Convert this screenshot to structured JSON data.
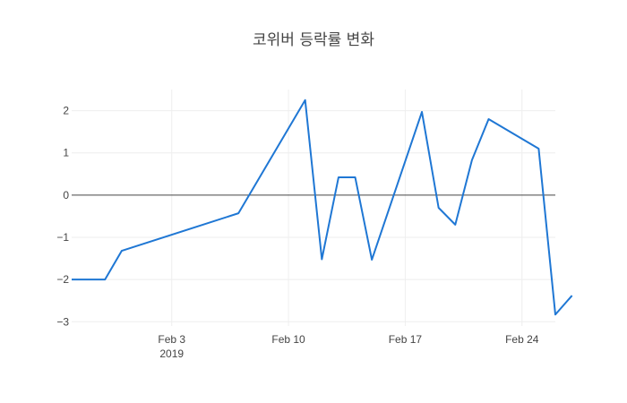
{
  "chart_data": {
    "type": "line",
    "title": "코위버 등락률 변화",
    "xlabel": "",
    "ylabel": "",
    "x_range": [
      "2019-01-28",
      "2019-02-26"
    ],
    "ylim": [
      -3.1,
      2.5
    ],
    "y_ticks": [
      2,
      1,
      0,
      -1,
      -2,
      -3
    ],
    "y_tick_labels": [
      "2",
      "1",
      "0",
      "−1",
      "−2",
      "−3"
    ],
    "x_ticks": [
      {
        "date": "2019-02-03",
        "label": "Feb 3",
        "sublabel": "2019"
      },
      {
        "date": "2019-02-10",
        "label": "Feb 10",
        "sublabel": ""
      },
      {
        "date": "2019-02-17",
        "label": "Feb 17",
        "sublabel": ""
      },
      {
        "date": "2019-02-24",
        "label": "Feb 24",
        "sublabel": ""
      }
    ],
    "grid": true,
    "zero_line": true,
    "series": [
      {
        "color": "#1f77d4",
        "points": [
          {
            "x": "2019-01-28",
            "y": -2.0
          },
          {
            "x": "2019-01-30",
            "y": -2.0
          },
          {
            "x": "2019-01-31",
            "y": -1.32
          },
          {
            "x": "2019-02-07",
            "y": -0.43
          },
          {
            "x": "2019-02-11",
            "y": 2.25
          },
          {
            "x": "2019-02-12",
            "y": -1.52
          },
          {
            "x": "2019-02-13",
            "y": 0.42
          },
          {
            "x": "2019-02-14",
            "y": 0.42
          },
          {
            "x": "2019-02-15",
            "y": -1.53
          },
          {
            "x": "2019-02-18",
            "y": 1.97
          },
          {
            "x": "2019-02-19",
            "y": -0.3
          },
          {
            "x": "2019-02-20",
            "y": -0.7
          },
          {
            "x": "2019-02-21",
            "y": 0.83
          },
          {
            "x": "2019-02-22",
            "y": 1.8
          },
          {
            "x": "2019-02-25",
            "y": 1.1
          },
          {
            "x": "2019-02-26",
            "y": -2.83
          },
          {
            "x": "2019-02-27",
            "y": -2.38
          }
        ]
      }
    ]
  }
}
